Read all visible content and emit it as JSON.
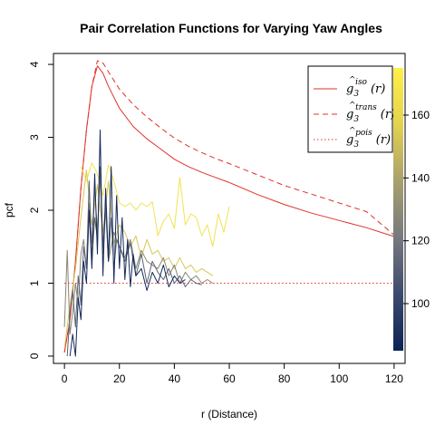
{
  "chart_data": {
    "type": "line",
    "title": "Pair Correlation Functions for Varying Yaw Angles",
    "xlabel": "r (Distance)",
    "ylabel": "pcf",
    "xlim": [
      -4,
      124
    ],
    "ylim": [
      -0.1,
      4.15
    ],
    "xticks": [
      0,
      20,
      40,
      60,
      80,
      100,
      120
    ],
    "yticks": [
      0,
      1,
      2,
      3,
      4
    ],
    "legend_position": "top-right",
    "legend": [
      {
        "key": "iso",
        "label": "g",
        "sub": "3",
        "sup": "iso",
        "arg": "(r)",
        "color": "#e0322a",
        "dash": "solid"
      },
      {
        "key": "trans",
        "label": "g",
        "sub": "3",
        "sup": "trans",
        "arg": "(r)",
        "color": "#e0322a",
        "dash": "dashed"
      },
      {
        "key": "pois",
        "label": "g",
        "sub": "3",
        "sup": "pois",
        "arg": "(r)",
        "color": "#e0322a",
        "dash": "dotted"
      }
    ],
    "colorbar": {
      "range": [
        85,
        175
      ],
      "ticks": [
        100,
        120,
        140,
        160
      ],
      "colors": [
        "#0c2356",
        "#3c4a6e",
        "#77797e",
        "#a8a06e",
        "#e3d24e",
        "#fff046"
      ]
    },
    "series": [
      {
        "key": "iso",
        "color": "#e0322a",
        "dash": "solid",
        "x": [
          0,
          2,
          4,
          6,
          8,
          10,
          12,
          14,
          16,
          18,
          20,
          25,
          30,
          35,
          40,
          45,
          50,
          55,
          60,
          70,
          80,
          90,
          100,
          110,
          120
        ],
        "y": [
          0.05,
          0.5,
          1.3,
          2.3,
          3.1,
          3.7,
          3.98,
          3.88,
          3.7,
          3.55,
          3.4,
          3.15,
          2.98,
          2.84,
          2.7,
          2.6,
          2.52,
          2.45,
          2.38,
          2.22,
          2.08,
          1.96,
          1.86,
          1.76,
          1.64
        ]
      },
      {
        "key": "trans",
        "color": "#e0322a",
        "dash": "dashed",
        "x": [
          0,
          2,
          4,
          6,
          8,
          10,
          12,
          14,
          16,
          18,
          20,
          25,
          30,
          35,
          40,
          45,
          50,
          55,
          60,
          70,
          80,
          90,
          100,
          110,
          120
        ],
        "y": [
          0.05,
          0.5,
          1.3,
          2.3,
          3.1,
          3.7,
          4.05,
          4.02,
          3.9,
          3.78,
          3.66,
          3.45,
          3.28,
          3.13,
          2.99,
          2.88,
          2.79,
          2.71,
          2.64,
          2.49,
          2.34,
          2.22,
          2.1,
          1.98,
          1.66
        ]
      },
      {
        "key": "pois",
        "color": "#e0322a",
        "dash": "dotted",
        "x": [
          0,
          120
        ],
        "y": [
          1,
          1
        ]
      },
      {
        "key": "yaw-a",
        "color": "#f2e250",
        "dash": "solid",
        "x": [
          6,
          8,
          10,
          12,
          14,
          16,
          18,
          20,
          22,
          24,
          26,
          28,
          30,
          32,
          34,
          36,
          38,
          40,
          42,
          44,
          46,
          48,
          50,
          52,
          54,
          56,
          58,
          60
        ],
        "y": [
          2.6,
          2.4,
          2.65,
          2.5,
          2.2,
          2.62,
          2.4,
          2.1,
          2.05,
          2.1,
          2.0,
          2.1,
          2.05,
          2.12,
          1.65,
          1.85,
          1.95,
          1.75,
          2.45,
          1.8,
          1.95,
          1.9,
          1.65,
          1.8,
          1.5,
          1.95,
          1.7,
          2.05
        ]
      },
      {
        "key": "yaw-b",
        "color": "#d6c85a",
        "dash": "solid",
        "x": [
          0,
          2,
          4,
          6,
          8,
          10,
          12,
          14,
          16,
          18,
          20,
          22,
          24,
          26,
          28,
          30,
          32,
          34,
          36,
          38,
          40,
          42,
          44,
          46,
          48,
          50,
          52,
          54
        ],
        "y": [
          0.1,
          0.7,
          1.2,
          1.9,
          2.55,
          1.8,
          2.35,
          1.7,
          2.4,
          1.55,
          1.8,
          1.7,
          1.5,
          1.65,
          1.35,
          1.6,
          1.4,
          1.45,
          1.3,
          1.35,
          1.2,
          1.35,
          1.2,
          1.25,
          1.15,
          1.2,
          1.15,
          1.1
        ]
      },
      {
        "key": "yaw-c",
        "color": "#8a8574",
        "dash": "solid",
        "x": [
          0,
          1,
          2,
          3,
          4,
          5,
          6,
          7,
          8,
          9,
          10,
          11,
          12,
          13,
          14,
          15,
          16,
          18,
          20,
          22,
          24,
          26,
          28,
          30,
          32,
          34,
          36,
          38,
          40,
          42,
          44,
          46,
          48,
          50,
          52,
          54
        ],
        "y": [
          0.4,
          1.45,
          0.3,
          0.6,
          1.0,
          0.7,
          1.4,
          1.6,
          1.2,
          2.1,
          1.55,
          2.3,
          1.7,
          2.5,
          1.4,
          2.0,
          1.3,
          1.7,
          1.5,
          1.35,
          1.6,
          1.2,
          1.45,
          1.3,
          1.25,
          1.2,
          1.35,
          1.1,
          1.25,
          1.0,
          1.15,
          1.05,
          1.1,
          1.0,
          1.05,
          1.0
        ]
      },
      {
        "key": "yaw-d",
        "color": "#5a6476",
        "dash": "solid",
        "x": [
          1,
          2,
          3,
          4,
          5,
          6,
          7,
          8,
          9,
          10,
          11,
          12,
          13,
          14,
          15,
          16,
          17,
          18,
          19,
          20,
          22,
          24,
          26,
          28,
          30,
          32,
          34,
          36,
          38,
          40,
          42,
          44,
          46,
          48,
          50
        ],
        "y": [
          0.0,
          0.6,
          0.9,
          0.4,
          1.1,
          0.7,
          1.5,
          1.2,
          2.4,
          1.3,
          1.9,
          1.6,
          2.6,
          1.5,
          2.1,
          1.3,
          1.9,
          1.2,
          1.6,
          1.5,
          1.3,
          1.55,
          1.1,
          1.4,
          1.0,
          1.3,
          1.15,
          1.05,
          1.2,
          1.0,
          1.1,
          0.95,
          1.05,
          1.0,
          0.98
        ]
      },
      {
        "key": "yaw-e",
        "color": "#16295a",
        "dash": "solid",
        "x": [
          2,
          3,
          4,
          5,
          6,
          7,
          8,
          9,
          10,
          11,
          12,
          13,
          14,
          15,
          16,
          17,
          18,
          19,
          20,
          21,
          22,
          23,
          24,
          25,
          26,
          28,
          30,
          32,
          34,
          36,
          38,
          40,
          42,
          44
        ],
        "y": [
          0.0,
          0.3,
          0.0,
          0.8,
          0.5,
          1.3,
          1.0,
          2.0,
          1.2,
          2.5,
          1.4,
          3.1,
          1.1,
          2.3,
          1.3,
          2.6,
          1.0,
          2.2,
          1.2,
          1.9,
          1.05,
          1.6,
          0.95,
          1.4,
          1.1,
          1.2,
          0.9,
          1.15,
          1.0,
          1.25,
          0.95,
          1.1,
          1.0,
          1.05
        ]
      }
    ]
  }
}
